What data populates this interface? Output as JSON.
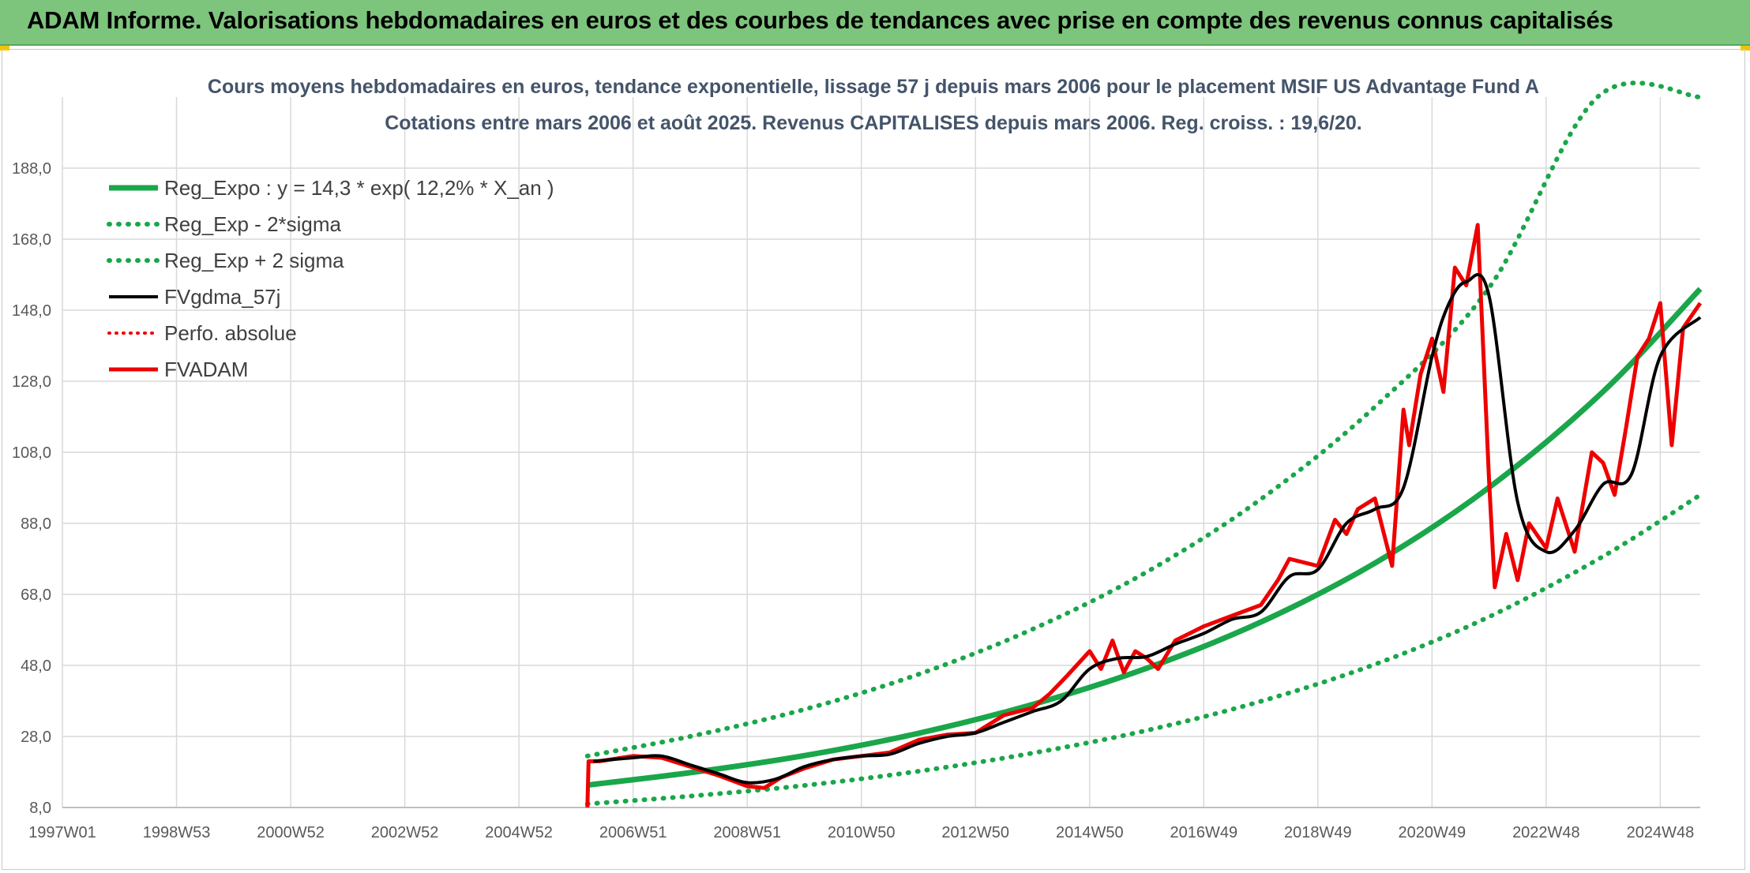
{
  "header": {
    "title": "ADAM Informe. Valorisations hebdomadaires en euros et des courbes de tendances avec prise en compte des revenus connus capitalisés"
  },
  "colors": {
    "header_bg": "#7dc47d",
    "reg_green": "#1aa64a",
    "price_red": "#ee0000",
    "ma_black": "#000000",
    "grid": "#d9d9d9"
  },
  "chart_data": {
    "type": "line",
    "title_line1": "Cours moyens hebdomadaires en euros, tendance exponentielle, lissage 57 j depuis mars 2006 pour le placement MSIF US Advantage Fund A",
    "title_line2": "Cotations entre mars 2006 et août 2025. Revenus CAPITALISES depuis mars 2006. Reg. croiss. : 19,6/20.",
    "x_range": [
      1997.0,
      2025.7
    ],
    "ylim": [
      8.0,
      208.0
    ],
    "y_ticks": [
      "8,0",
      "28,0",
      "48,0",
      "68,0",
      "88,0",
      "108,0",
      "128,0",
      "148,0",
      "168,0",
      "188,0"
    ],
    "y_tick_values": [
      8,
      28,
      48,
      68,
      88,
      108,
      128,
      148,
      168,
      188
    ],
    "x_ticks": [
      "1997W01",
      "1998W53",
      "2000W52",
      "2002W52",
      "2004W52",
      "2006W51",
      "2008W51",
      "2010W50",
      "2012W50",
      "2014W50",
      "2016W49",
      "2018W49",
      "2020W49",
      "2022W48",
      "2024W48"
    ],
    "x_tick_values": [
      1997.0,
      1999.0,
      2001.0,
      2003.0,
      2005.0,
      2007.0,
      2009.0,
      2011.0,
      2013.0,
      2015.0,
      2017.0,
      2019.0,
      2021.0,
      2023.0,
      2025.0
    ],
    "grid": true,
    "legend_position": "top-left",
    "legend": [
      {
        "label": "Reg_Expo : y = 14,3 * exp( 12,2% *  X_an )",
        "style": "solid-green"
      },
      {
        "label": "Reg_Exp - 2*sigma",
        "style": "dotted-green"
      },
      {
        "label": "Reg_Exp + 2 sigma",
        "style": "dotted-green"
      },
      {
        "label": "FVgdma_57j",
        "style": "solid-black"
      },
      {
        "label": "Perfo. absolue",
        "style": "dotted-red"
      },
      {
        "label": "FVADAM",
        "style": "solid-red"
      }
    ],
    "series": [
      {
        "name": "Reg_Expo : y = 14,3 * exp( 12,2% *  X_an )",
        "x": [
          2006.2,
          2008,
          2010,
          2012,
          2014,
          2016,
          2018,
          2020,
          2022,
          2024,
          2025.7
        ],
        "values": [
          14.3,
          17.8,
          22.6,
          28.9,
          37.0,
          47.2,
          60.2,
          76.8,
          98.1,
          125.1,
          154.0
        ]
      },
      {
        "name": "Reg_Exp - 2*sigma",
        "x": [
          2006.2,
          2008,
          2010,
          2012,
          2014,
          2016,
          2018,
          2020,
          2022,
          2024,
          2025.7
        ],
        "values": [
          9.0,
          11.2,
          14.2,
          18.2,
          23.3,
          29.7,
          37.9,
          48.3,
          61.7,
          78.7,
          96.0
        ]
      },
      {
        "name": "Reg_Exp + 2 sigma",
        "x": [
          2006.2,
          2008,
          2010,
          2012,
          2014,
          2016,
          2018,
          2020,
          2022,
          2023.9,
          2025.7
        ],
        "values": [
          22.5,
          28.0,
          35.6,
          45.5,
          58.2,
          74.3,
          94.8,
          120.8,
          154.3,
          208.0,
          208.0
        ]
      },
      {
        "name": "FVgdma_57j",
        "x": [
          2006.3,
          2007,
          2007.5,
          2008,
          2008.5,
          2009,
          2009.5,
          2010,
          2010.5,
          2011,
          2011.5,
          2012,
          2012.5,
          2013,
          2013.5,
          2014,
          2014.5,
          2015,
          2015.5,
          2016,
          2016.5,
          2017,
          2017.5,
          2018,
          2018.5,
          2019,
          2019.5,
          2020,
          2020.5,
          2021,
          2021.3,
          2021.6,
          2022,
          2022.5,
          2023,
          2023.5,
          2024,
          2024.5,
          2025,
          2025.7
        ],
        "values": [
          21,
          22,
          22.5,
          20,
          17.5,
          15,
          16,
          19.5,
          21.5,
          22.5,
          23,
          26,
          28,
          29,
          32,
          35,
          38,
          47,
          50,
          50.5,
          54,
          57,
          61,
          63,
          73,
          75,
          88,
          92,
          98,
          135,
          150,
          156,
          152,
          94,
          80,
          86,
          99,
          102,
          135,
          146
        ]
      },
      {
        "name": "FVADAM",
        "x": [
          2006.2,
          2006.22,
          2006.4,
          2007,
          2007.5,
          2008,
          2008.5,
          2009,
          2009.3,
          2009.6,
          2010,
          2010.5,
          2011,
          2011.5,
          2012,
          2012.5,
          2013,
          2013.5,
          2014,
          2014.3,
          2014.6,
          2015,
          2015.2,
          2015.4,
          2015.6,
          2015.8,
          2016,
          2016.2,
          2016.5,
          2017,
          2017.5,
          2018,
          2018.3,
          2018.5,
          2019,
          2019.3,
          2019.5,
          2019.7,
          2020,
          2020.3,
          2020.5,
          2020.6,
          2020.8,
          2021,
          2021.2,
          2021.4,
          2021.6,
          2021.8,
          2022,
          2022.1,
          2022.3,
          2022.5,
          2022.7,
          2023,
          2023.2,
          2023.5,
          2023.8,
          2024,
          2024.2,
          2024.4,
          2024.6,
          2024.8,
          2025,
          2025.2,
          2025.4,
          2025.7
        ],
        "values": [
          8,
          21,
          21,
          22.5,
          22,
          19.5,
          17,
          14,
          13.5,
          16.5,
          19,
          21.5,
          22.5,
          23.5,
          27,
          28.5,
          29,
          34,
          36,
          40,
          45,
          52,
          47,
          55,
          46,
          52,
          50,
          47,
          55,
          59,
          62,
          65,
          72,
          78,
          76,
          89,
          85,
          92,
          95,
          76,
          120,
          110,
          130,
          140,
          125,
          160,
          155,
          172,
          100,
          70,
          85,
          72,
          88,
          81,
          95,
          80,
          108,
          105,
          96,
          115,
          135,
          140,
          150,
          110,
          143,
          150
        ]
      }
    ]
  }
}
